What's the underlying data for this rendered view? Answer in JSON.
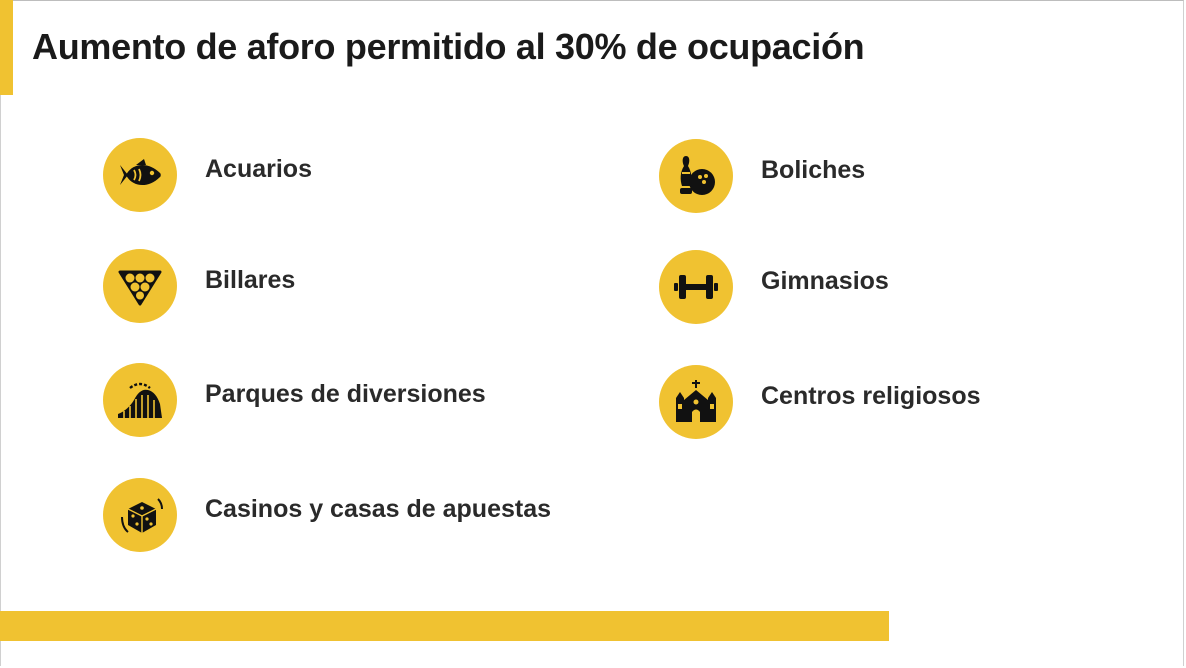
{
  "slide": {
    "title": "Aumento de aforo permitido al 30% de ocupación",
    "accent_color": "#f0c231"
  },
  "items": [
    {
      "label": "Acuarios",
      "icon": "fish-icon"
    },
    {
      "label": "Billares",
      "icon": "billiard-balls-icon"
    },
    {
      "label": "Parques de diversiones",
      "icon": "roller-coaster-icon"
    },
    {
      "label": "Casinos y casas de apuestas",
      "icon": "dice-icon"
    },
    {
      "label": "Boliches",
      "icon": "bowling-icon"
    },
    {
      "label": "Gimnasios",
      "icon": "dumbbell-icon"
    },
    {
      "label": "Centros religiosos",
      "icon": "church-icon"
    }
  ]
}
